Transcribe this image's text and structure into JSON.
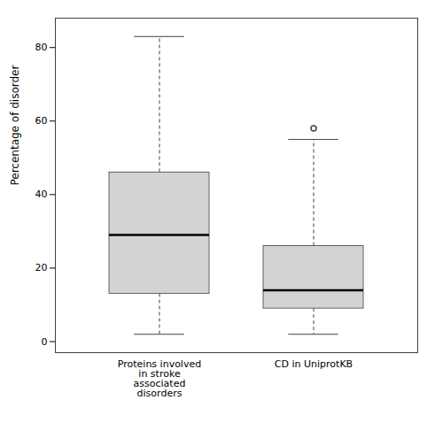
{
  "chart_data": {
    "type": "box",
    "ylabel": "Percentage of disorder",
    "categories": [
      "Proteins involved\nin stroke\nassociated\ndisorders",
      "CD in UniprotKB"
    ],
    "q1": [
      13,
      9
    ],
    "median": [
      29,
      14
    ],
    "q3": [
      46,
      26
    ],
    "whisker_low": [
      2,
      2
    ],
    "whisker_high": [
      83,
      55
    ],
    "outliers": [
      [],
      [
        58
      ]
    ],
    "ylim": [
      -3,
      88
    ],
    "yticks": [
      0,
      20,
      40,
      60,
      80
    ],
    "grid": false,
    "color": "#d3d3d3"
  }
}
